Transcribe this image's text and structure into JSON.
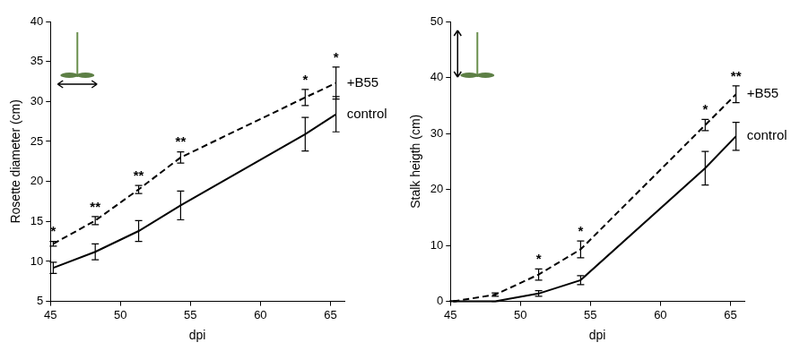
{
  "chart_data": [
    {
      "type": "line",
      "x_label": "dpi",
      "y_label": "Rosette diameter (cm)",
      "x": [
        45.2,
        48.2,
        51.3,
        54.3,
        63.2,
        65.4
      ],
      "xlim": [
        45,
        66
      ],
      "xticks": [
        45,
        50,
        55,
        60,
        65
      ],
      "ylim": [
        5,
        40
      ],
      "yticks": [
        5,
        10,
        15,
        20,
        25,
        30,
        35,
        40
      ],
      "grid": false,
      "annotations": [
        "*",
        "**",
        "**",
        "**",
        "*",
        "*"
      ],
      "series": [
        {
          "name": "+B55",
          "color": "#000000",
          "line_style": "dashed",
          "values": [
            12.2,
            15.1,
            19.0,
            23.0,
            30.5,
            32.3
          ],
          "errors": [
            0.3,
            0.5,
            0.5,
            0.7,
            1.0,
            2.0
          ]
        },
        {
          "name": "control",
          "color": "#000000",
          "line_style": "solid",
          "values": [
            9.2,
            11.2,
            13.8,
            17.0,
            25.9,
            28.4
          ],
          "errors": [
            0.7,
            1.0,
            1.3,
            1.8,
            2.1,
            2.2
          ]
        }
      ]
    },
    {
      "type": "line",
      "x_label": "dpi",
      "y_label": "Stalk heigth (cm)",
      "x": [
        45.2,
        48.2,
        51.3,
        54.3,
        63.2,
        65.4
      ],
      "xlim": [
        45,
        66
      ],
      "xticks": [
        45,
        50,
        55,
        60,
        65
      ],
      "ylim": [
        0,
        50
      ],
      "yticks": [
        0,
        10,
        20,
        30,
        40,
        50
      ],
      "grid": false,
      "annotations": [
        null,
        null,
        "*",
        "*",
        "*",
        "**"
      ],
      "series": [
        {
          "name": "+B55",
          "color": "#000000",
          "line_style": "dashed",
          "values": [
            0,
            1.2,
            4.8,
            9.3,
            31.5,
            37.0
          ],
          "errors": [
            0.1,
            0.3,
            1.0,
            1.5,
            1.0,
            1.5
          ]
        },
        {
          "name": "control",
          "color": "#000000",
          "line_style": "solid",
          "values": [
            0,
            0,
            1.4,
            3.8,
            23.8,
            29.5
          ],
          "errors": [
            0,
            0,
            0.5,
            0.8,
            3.0,
            2.5
          ]
        }
      ]
    }
  ]
}
